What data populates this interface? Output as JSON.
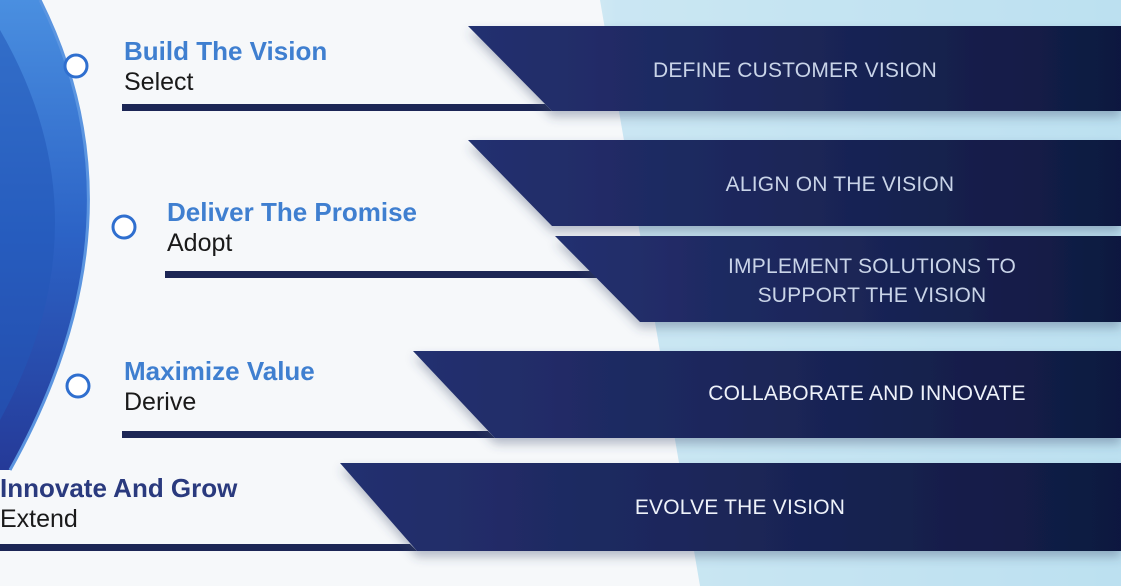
{
  "colors": {
    "title_blue": "#3f7fd0",
    "title_navy": "#2a3a7e",
    "band_dark": "#121c45",
    "band_mid": "#25306b",
    "arc_blue": "#2f6fcf",
    "accent_light": "#bfe0f0"
  },
  "stages": [
    {
      "title": "Build The Vision",
      "subtitle": "Select"
    },
    {
      "title": "Deliver The Promise",
      "subtitle": "Adopt"
    },
    {
      "title": "Maximize Value",
      "subtitle": "Derive"
    },
    {
      "title": "Innovate And Grow",
      "subtitle": "Extend"
    }
  ],
  "bands": [
    {
      "lines": [
        "DEFINE CUSTOMER VISION"
      ]
    },
    {
      "lines": [
        "ALIGN ON THE VISION"
      ]
    },
    {
      "lines": [
        "IMPLEMENT SOLUTIONS TO",
        "SUPPORT THE VISION"
      ]
    },
    {
      "lines": [
        "COLLABORATE AND INNOVATE"
      ]
    },
    {
      "lines": [
        "EVOLVE THE VISION"
      ]
    }
  ]
}
